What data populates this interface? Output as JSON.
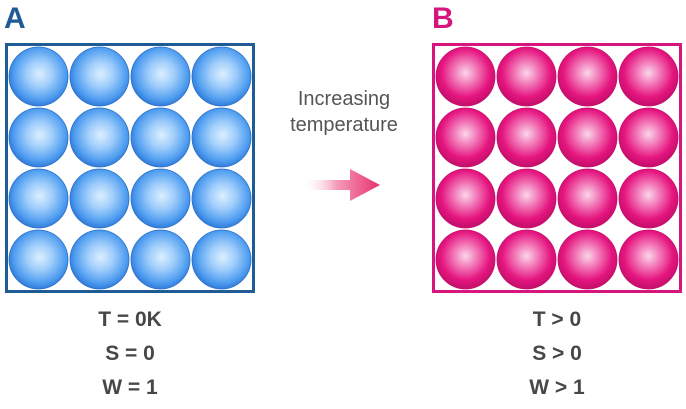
{
  "panel_a": {
    "letter": "A",
    "color": "#1f5b94",
    "particle_color": "#2f86ee",
    "rows": 4,
    "cols": 4,
    "stats": [
      "T = 0K",
      "S = 0",
      "W = 1"
    ]
  },
  "panel_b": {
    "letter": "B",
    "color": "#d6167d",
    "particle_color": "#e5157f",
    "rows": 4,
    "cols": 4,
    "stats": [
      "T > 0",
      "S > 0",
      "W > 1"
    ]
  },
  "caption": {
    "line1": "Increasing",
    "line2": "temperature"
  },
  "arrow": {
    "icon": "right-arrow-icon",
    "color": "#e8306e"
  }
}
